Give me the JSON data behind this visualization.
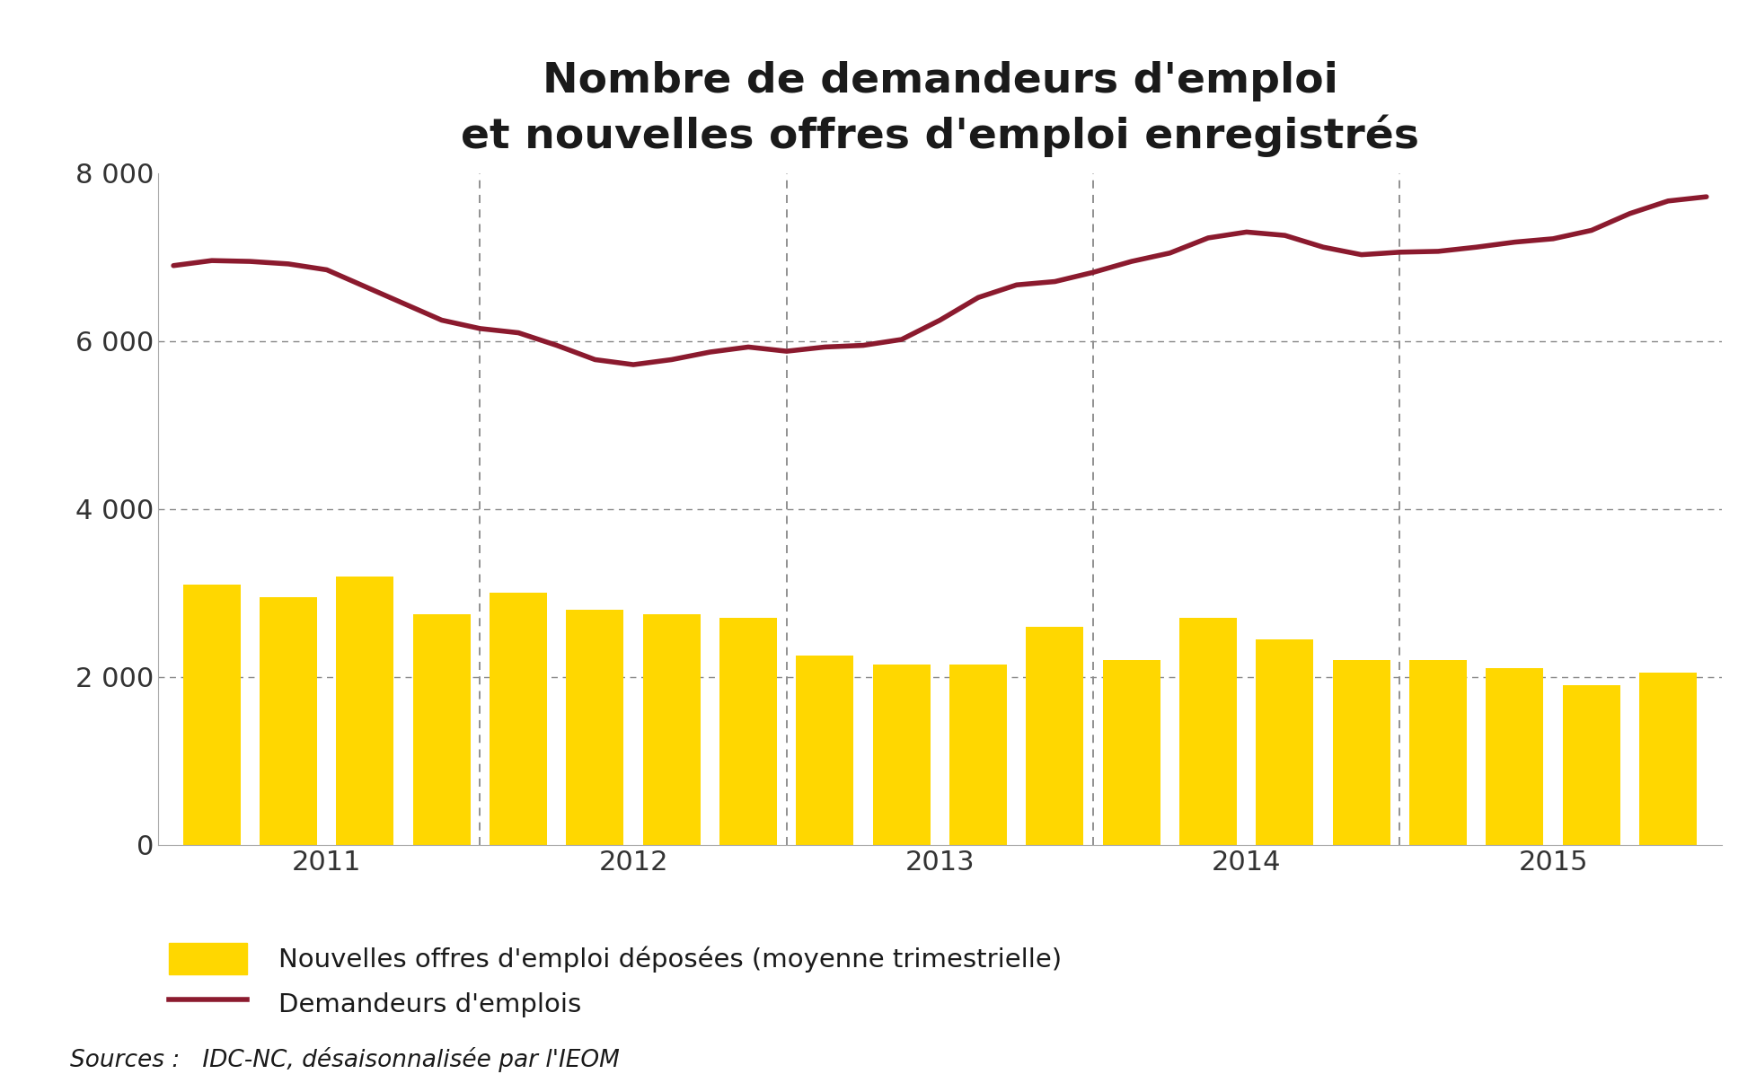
{
  "title_line1": "Nombre de demandeurs d'emploi",
  "title_line2": "et nouvelles offres d'emploi enregistrés",
  "source_text": "Sources :   IDC-NC, désaisonnalisée par l'IEOM",
  "legend_bar": "Nouvelles offres d'emploi déposées (moyenne trimestrielle)",
  "legend_line": "Demandeurs d'emplois",
  "bar_color": "#FFD700",
  "line_color": "#8B1A2E",
  "background_color": "#FFFFFF",
  "ylim": [
    0,
    8000
  ],
  "yticks": [
    0,
    2000,
    4000,
    6000,
    8000
  ],
  "ytick_labels": [
    "0",
    "2 000",
    "4 000",
    "6 000",
    "8 000"
  ],
  "bar_values": [
    3100,
    2950,
    3200,
    2750,
    3000,
    2800,
    2750,
    2700,
    2250,
    2150,
    2150,
    2600,
    2200,
    2700,
    2450,
    2200,
    2200,
    2100,
    1900,
    2050
  ],
  "line_values": [
    6900,
    6960,
    6950,
    6920,
    6850,
    6650,
    6450,
    6250,
    6150,
    6100,
    5950,
    5780,
    5720,
    5780,
    5870,
    5930,
    5880,
    5930,
    5950,
    6020,
    6250,
    6520,
    6670,
    6710,
    6820,
    6950,
    7050,
    7230,
    7300,
    7260,
    7120,
    7030,
    7060,
    7070,
    7120,
    7180,
    7220,
    7320,
    7520,
    7670,
    7720
  ],
  "year_labels": [
    "2011",
    "2012",
    "2013",
    "2014",
    "2015"
  ],
  "bar_width": 0.75,
  "title_fontsize": 34,
  "tick_fontsize": 22,
  "legend_fontsize": 21,
  "source_fontsize": 19
}
